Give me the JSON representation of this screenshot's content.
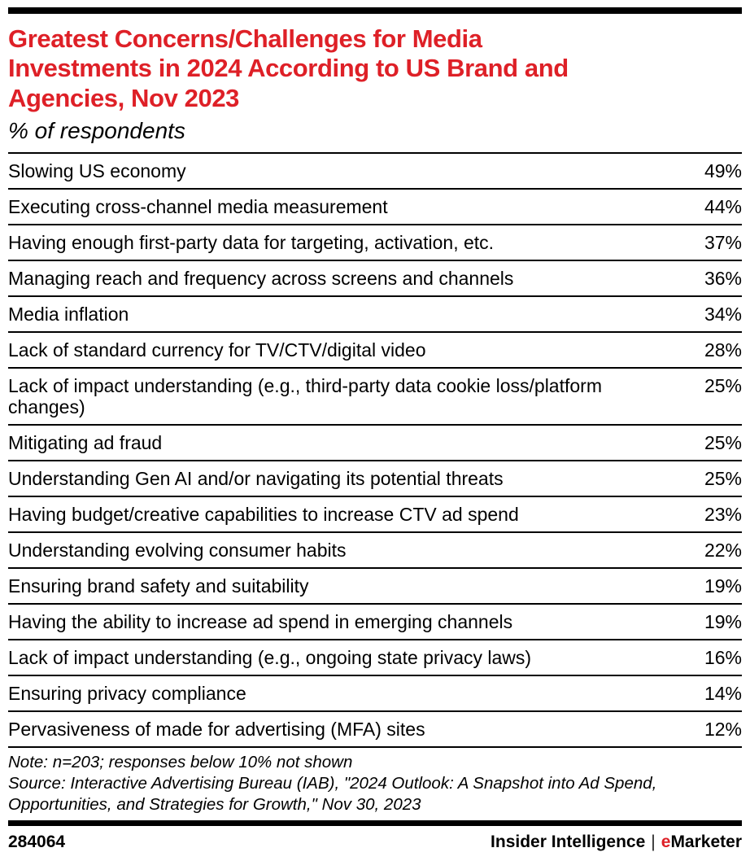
{
  "header": {
    "title_lines": [
      "Greatest Concerns/Challenges for Media",
      "Investments in 2024 According to US Brand and",
      "Agencies, Nov 2023"
    ],
    "subtitle": "% of respondents"
  },
  "chart_data": {
    "type": "table",
    "title": "Greatest Concerns/Challenges for Media Investments in 2024 According to US Brand and Agencies, Nov 2023",
    "subtitle": "% of respondents",
    "unit": "%",
    "categories": [
      "Slowing US economy",
      "Executing cross-channel media measurement",
      "Having enough first-party data for targeting, activation, etc.",
      "Managing reach and frequency across screens and channels",
      "Media inflation",
      "Lack of standard currency for TV/CTV/digital video",
      "Lack of impact understanding (e.g., third-party data cookie loss/platform changes)",
      "Mitigating ad fraud",
      "Understanding Gen AI and/or navigating its potential threats",
      "Having budget/creative capabilities to increase CTV ad spend",
      "Understanding evolving consumer habits",
      "Ensuring brand safety and suitability",
      "Having the ability to increase ad spend in emerging channels",
      "Lack of impact understanding (e.g., ongoing state privacy laws)",
      "Ensuring privacy compliance",
      "Pervasiveness of made for advertising (MFA) sites"
    ],
    "values": [
      49,
      44,
      37,
      36,
      34,
      28,
      25,
      25,
      25,
      23,
      22,
      19,
      19,
      16,
      14,
      12
    ],
    "note": "Note: n=203; responses below 10% not shown",
    "source": "Source: Interactive Advertising Bureau (IAB), \"2024 Outlook: A Snapshot into Ad Spend, Opportunities, and Strategies for Growth,\" Nov 30, 2023"
  },
  "table": {
    "rows": [
      {
        "label": "Slowing US economy",
        "percent": "49%"
      },
      {
        "label": "Executing cross-channel media measurement",
        "percent": "44%"
      },
      {
        "label": "Having enough first-party data for targeting, activation, etc.",
        "percent": "37%"
      },
      {
        "label": "Managing reach and frequency across screens and channels",
        "percent": "36%"
      },
      {
        "label": "Media inflation",
        "percent": "34%"
      },
      {
        "label": "Lack of standard currency for TV/CTV/digital video",
        "percent": "28%"
      },
      {
        "label": "Lack of impact understanding (e.g., third-party data cookie loss/platform changes)",
        "percent": "25%"
      },
      {
        "label": "Mitigating ad fraud",
        "percent": "25%"
      },
      {
        "label": "Understanding Gen AI and/or navigating its potential threats",
        "percent": "25%"
      },
      {
        "label": "Having budget/creative capabilities to increase CTV ad spend",
        "percent": "23%"
      },
      {
        "label": "Understanding evolving consumer habits",
        "percent": "22%"
      },
      {
        "label": "Ensuring brand safety and suitability",
        "percent": "19%"
      },
      {
        "label": "Having the ability to increase ad spend in emerging channels",
        "percent": "19%"
      },
      {
        "label": "Lack of impact understanding (e.g., ongoing state privacy laws)",
        "percent": "16%"
      },
      {
        "label": "Ensuring privacy compliance",
        "percent": "14%"
      },
      {
        "label": "Pervasiveness of made for advertising (MFA) sites",
        "percent": "12%"
      }
    ]
  },
  "footnotes": {
    "note": "Note: n=203; responses below 10% not shown",
    "source": "Source: Interactive Advertising Bureau (IAB), \"2024 Outlook: A Snapshot into Ad Spend, Opportunities, and Strategies for Growth,\" Nov 30, 2023"
  },
  "footer": {
    "chart_id": "284064",
    "brand_primary": "Insider Intelligence",
    "separator": "|",
    "brand_secondary_prefix": "e",
    "brand_secondary_rest": "Marketer"
  },
  "colors": {
    "title_red": "#de2027",
    "text_black": "#000000"
  }
}
